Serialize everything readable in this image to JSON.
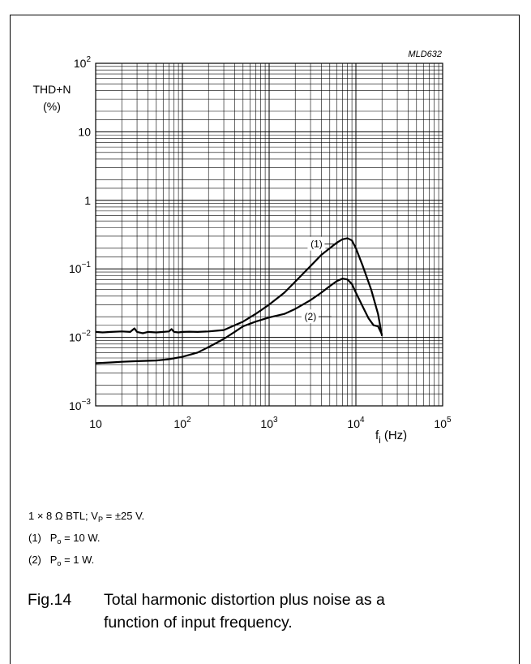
{
  "chart_data": {
    "type": "line",
    "code": "MLD632",
    "title": "",
    "ylabel_line1": "THD+N",
    "ylabel_line2": "(%)",
    "xlabel_main": "f",
    "xlabel_sub": "i",
    "xlabel_unit": "(Hz)",
    "x_scale": "log",
    "y_scale": "log",
    "xlim": [
      10,
      100000
    ],
    "ylim": [
      0.001,
      100
    ],
    "grid": true,
    "x_ticks": [
      {
        "value": 10,
        "base": "10",
        "exp": ""
      },
      {
        "value": 100,
        "base": "10",
        "exp": "2"
      },
      {
        "value": 1000,
        "base": "10",
        "exp": "3"
      },
      {
        "value": 10000,
        "base": "10",
        "exp": "4"
      },
      {
        "value": 100000,
        "base": "10",
        "exp": "5"
      }
    ],
    "y_ticks": [
      {
        "value": 0.001,
        "base": "10",
        "exp": "−3"
      },
      {
        "value": 0.01,
        "base": "10",
        "exp": "−2"
      },
      {
        "value": 0.1,
        "base": "10",
        "exp": "−1"
      },
      {
        "value": 1,
        "base": "1",
        "exp": ""
      },
      {
        "value": 10,
        "base": "10",
        "exp": ""
      },
      {
        "value": 100,
        "base": "10",
        "exp": "2"
      }
    ],
    "series": [
      {
        "label": "(1)",
        "x": [
          10,
          12,
          15,
          20,
          25,
          28,
          30,
          35,
          40,
          50,
          60,
          70,
          75,
          80,
          90,
          100,
          120,
          150,
          200,
          250,
          300,
          400,
          500,
          700,
          1000,
          1500,
          2000,
          3000,
          4000,
          5000,
          6000,
          7000,
          8000,
          9000,
          10000,
          12000,
          15000,
          18000,
          20000
        ],
        "y": [
          0.012,
          0.0118,
          0.012,
          0.0122,
          0.012,
          0.0135,
          0.012,
          0.0115,
          0.012,
          0.0118,
          0.012,
          0.0122,
          0.0132,
          0.012,
          0.0118,
          0.012,
          0.0121,
          0.012,
          0.0122,
          0.0125,
          0.0128,
          0.015,
          0.017,
          0.022,
          0.03,
          0.045,
          0.065,
          0.11,
          0.16,
          0.2,
          0.24,
          0.27,
          0.28,
          0.26,
          0.2,
          0.11,
          0.05,
          0.022,
          0.0105
        ]
      },
      {
        "label": "(2)",
        "x": [
          10,
          15,
          20,
          30,
          50,
          70,
          100,
          150,
          200,
          300,
          400,
          500,
          700,
          1000,
          1500,
          2000,
          3000,
          4000,
          5000,
          6000,
          7000,
          8000,
          9000,
          10000,
          12000,
          14000,
          16000,
          18000,
          20000
        ],
        "y": [
          0.0042,
          0.0043,
          0.0044,
          0.0045,
          0.0046,
          0.0048,
          0.0052,
          0.006,
          0.0072,
          0.0095,
          0.012,
          0.0145,
          0.017,
          0.0195,
          0.022,
          0.026,
          0.035,
          0.045,
          0.056,
          0.066,
          0.072,
          0.07,
          0.06,
          0.045,
          0.028,
          0.019,
          0.015,
          0.0145,
          0.011
        ]
      }
    ]
  },
  "notes": {
    "line1": {
      "prefix": "1 × 8 Ω BTL; V",
      "sub": "P",
      "suffix": " = ±25 V."
    },
    "line2": {
      "prefix": "(1)   P",
      "sub": "o",
      "suffix": " = 10 W."
    },
    "line3": {
      "prefix": "(2)   P",
      "sub": "o",
      "suffix": " = 1 W."
    }
  },
  "caption": {
    "number": "Fig.14",
    "line1": "Total harmonic distortion plus noise as a",
    "line2": "function of input frequency."
  }
}
